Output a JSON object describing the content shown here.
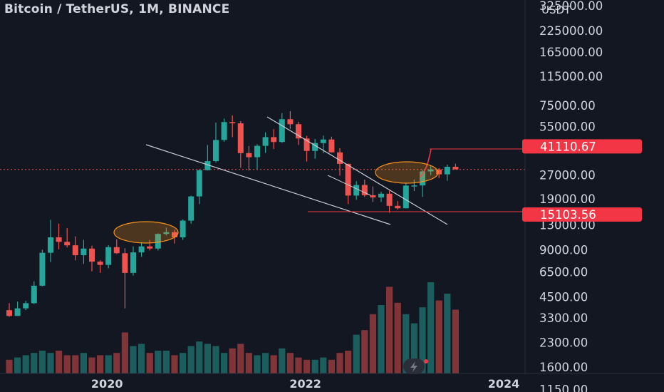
{
  "header": {
    "title": "Bitcoin / TetherUS, 1M, BINANCE"
  },
  "price_axis": {
    "currency": "USDT",
    "ticks": [
      "325000.00",
      "225000.00",
      "165000.00",
      "115000.00",
      "75000.00",
      "55000.00",
      "27000.00",
      "19000.00",
      "13000.00",
      "9000.00",
      "6500.00",
      "4500.00",
      "3300.00",
      "2300.00",
      "1600.00",
      "1150.00"
    ]
  },
  "time_axis": {
    "ticks": [
      "2020",
      "2022",
      "2024"
    ]
  },
  "price_labels": [
    {
      "text": "41110.67",
      "color": "#f23645"
    },
    {
      "text": "15103.56",
      "color": "#f23645"
    }
  ],
  "colors": {
    "up": "#26a69a",
    "down": "#ef5350",
    "background": "#131722",
    "highlight": "#f7931a"
  },
  "chart_data": {
    "type": "candlestick",
    "title": "Bitcoin / TetherUS, 1M, BINANCE",
    "scale": "log",
    "ylabel": "USDT",
    "ylim": [
      1150,
      400000
    ],
    "x": [
      "2019-01",
      "2019-02",
      "2019-03",
      "2019-04",
      "2019-05",
      "2019-06",
      "2019-07",
      "2019-08",
      "2019-09",
      "2019-10",
      "2019-11",
      "2019-12",
      "2020-01",
      "2020-02",
      "2020-03",
      "2020-04",
      "2020-05",
      "2020-06",
      "2020-07",
      "2020-08",
      "2020-09",
      "2020-10",
      "2020-11",
      "2020-12",
      "2021-01",
      "2021-02",
      "2021-03",
      "2021-04",
      "2021-05",
      "2021-06",
      "2021-07",
      "2021-08",
      "2021-09",
      "2021-10",
      "2021-11",
      "2021-12",
      "2022-01",
      "2022-02",
      "2022-03",
      "2022-04",
      "2022-05",
      "2022-06",
      "2022-07",
      "2022-08",
      "2022-09",
      "2022-10",
      "2022-11",
      "2022-12",
      "2023-01",
      "2023-02",
      "2023-03",
      "2023-04",
      "2023-05",
      "2023-06",
      "2023-07"
    ],
    "open": [
      3700,
      3400,
      3800,
      4100,
      5300,
      8600,
      10800,
      10100,
      9600,
      8300,
      9150,
      7550,
      7200,
      9350,
      8550,
      6400,
      8650,
      9450,
      9150,
      11350,
      11650,
      10800,
      13800,
      19700,
      28950,
      33100,
      45150,
      58750,
      57700,
      37250,
      35050,
      41450,
      47100,
      43850,
      61300,
      56950,
      46200,
      38450,
      43150,
      45500,
      37650,
      31800,
      19950,
      23300,
      20050,
      19400,
      20500,
      17150,
      16550,
      23100,
      23150,
      28450,
      29250,
      27250,
      30450
    ],
    "high": [
      4100,
      4200,
      4250,
      5650,
      9000,
      13950,
      13200,
      12350,
      10950,
      10400,
      9550,
      7700,
      9600,
      10500,
      9200,
      9450,
      10050,
      10400,
      11450,
      12450,
      12050,
      14050,
      19900,
      29300,
      41950,
      58350,
      61850,
      64850,
      59550,
      41300,
      42450,
      50500,
      52950,
      67000,
      69000,
      59050,
      47950,
      45850,
      48200,
      47450,
      40050,
      31950,
      24650,
      25200,
      22800,
      21100,
      21450,
      18400,
      23950,
      25250,
      29200,
      31000,
      29850,
      31450,
      31850
    ],
    "low": [
      3350,
      3400,
      3700,
      4050,
      5250,
      7500,
      9050,
      9300,
      7700,
      7300,
      6550,
      6400,
      6850,
      8450,
      3800,
      6150,
      8100,
      8900,
      8900,
      11100,
      9850,
      10400,
      13200,
      17600,
      28850,
      32400,
      43950,
      47050,
      30000,
      28800,
      29300,
      37350,
      39600,
      43300,
      53250,
      42000,
      32900,
      34300,
      37150,
      37550,
      26700,
      17600,
      18750,
      19550,
      18150,
      18150,
      15500,
      16250,
      16500,
      21350,
      19550,
      26950,
      25800,
      24800,
      29500
    ],
    "close": [
      3400,
      3800,
      4100,
      5300,
      8600,
      10800,
      10100,
      9600,
      8300,
      9150,
      7550,
      7200,
      9350,
      8550,
      6400,
      8650,
      9450,
      9150,
      11350,
      11650,
      10800,
      13800,
      19700,
      28950,
      33100,
      45150,
      58750,
      57700,
      37250,
      35050,
      41450,
      47100,
      43850,
      61300,
      56950,
      46200,
      38450,
      43150,
      45500,
      37650,
      31800,
      19950,
      23300,
      20050,
      19400,
      20500,
      17150,
      16550,
      23100,
      23150,
      28450,
      29250,
      27250,
      30450,
      29300
    ],
    "volume": [
      6,
      7,
      8,
      9,
      10,
      9,
      10,
      8,
      8,
      9,
      7,
      8,
      8,
      9,
      18,
      12,
      13,
      9,
      10,
      10,
      8,
      9,
      12,
      14,
      13,
      12,
      9,
      11,
      13,
      9,
      8,
      9,
      8,
      11,
      9,
      7,
      6,
      6,
      7,
      6,
      9,
      10,
      17,
      19,
      26,
      30,
      38,
      31,
      26,
      22,
      29,
      40,
      32,
      35,
      28
    ],
    "key_levels": [
      41110.67,
      15103.56
    ],
    "annotations": [
      "descending trendline",
      "breakout highlight 2020",
      "breakout highlight 2023",
      "projected move up"
    ]
  }
}
